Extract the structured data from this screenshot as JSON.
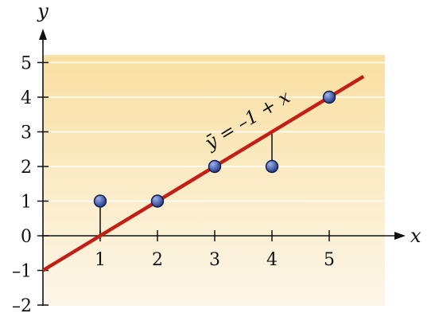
{
  "chart_data": {
    "type": "scatter",
    "xlabel": "x",
    "ylabel": "y",
    "xlim": [
      0,
      5.9
    ],
    "ylim": [
      -2,
      5.4
    ],
    "x_ticks": [
      "1",
      "2",
      "3",
      "4",
      "5"
    ],
    "y_ticks": [
      "5",
      "4",
      "3",
      "2",
      "1",
      "0",
      "–1",
      "–2"
    ],
    "grid": true,
    "points": [
      {
        "x": 1,
        "y": 1
      },
      {
        "x": 2,
        "y": 1
      },
      {
        "x": 3,
        "y": 2
      },
      {
        "x": 4,
        "y": 2
      },
      {
        "x": 5,
        "y": 4
      }
    ],
    "fit_line": {
      "intercept": -1,
      "slope": 1,
      "x_range": [
        0,
        5.6
      ]
    },
    "residuals": [
      {
        "x": 1,
        "y_from": 0,
        "y_to": 1
      },
      {
        "x": 4,
        "y_from": 3,
        "y_to": 2
      }
    ],
    "annotation": "ȳ = –1 + x",
    "colors": {
      "background_top": "#f9dfa1",
      "background_bottom": "#fdf7ea",
      "line": "#c21f16",
      "point": "#223a8a",
      "axis": "#111111",
      "grid": "#ffffff"
    }
  }
}
